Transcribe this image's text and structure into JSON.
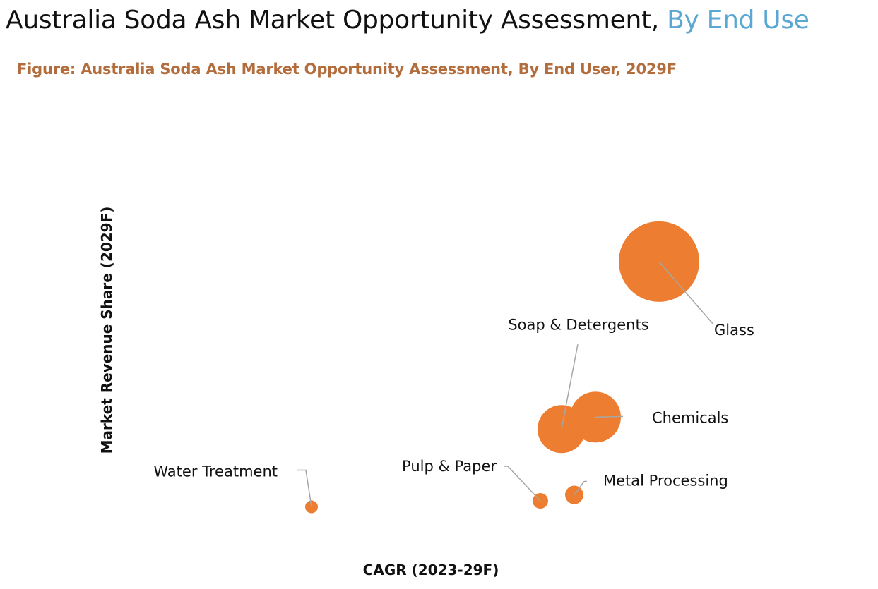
{
  "header": {
    "title_main": "Australia Soda Ash Market Opportunity Assessment, ",
    "title_accent": "By End Use",
    "caption": "Figure: Australia Soda Ash Market Opportunity Assessment, By End User, 2029F"
  },
  "colors": {
    "bubble": "#ed7d31",
    "accent": "#5aa7d4",
    "caption": "#b36d3c",
    "leader_line": "#a6a6a6"
  },
  "chart_data": {
    "type": "scatter",
    "subtype": "bubble",
    "title": "Australia Soda Ash Market Opportunity Assessment, By End Use",
    "xlabel": "CAGR (2023-29F)",
    "ylabel": "Market Revenue Share (2029F)",
    "axis_ticks_shown": false,
    "grid": false,
    "xlim": [
      0,
      100
    ],
    "ylim": [
      0,
      100
    ],
    "note": "Axes are unlabeled; values are relative positions and bubble sizes read from the figure.",
    "points": [
      {
        "name": "Glass",
        "x": 88,
        "y": 84,
        "size": 57
      },
      {
        "name": "Soap & Detergents",
        "x": 65,
        "y": 28,
        "size": 34
      },
      {
        "name": "Chemicals",
        "x": 73,
        "y": 32,
        "size": 36
      },
      {
        "name": "Water Treatment",
        "x": 6,
        "y": 2,
        "size": 9
      },
      {
        "name": "Pulp & Paper",
        "x": 60,
        "y": 4,
        "size": 11
      },
      {
        "name": "Metal Processing",
        "x": 68,
        "y": 6,
        "size": 13
      }
    ]
  }
}
